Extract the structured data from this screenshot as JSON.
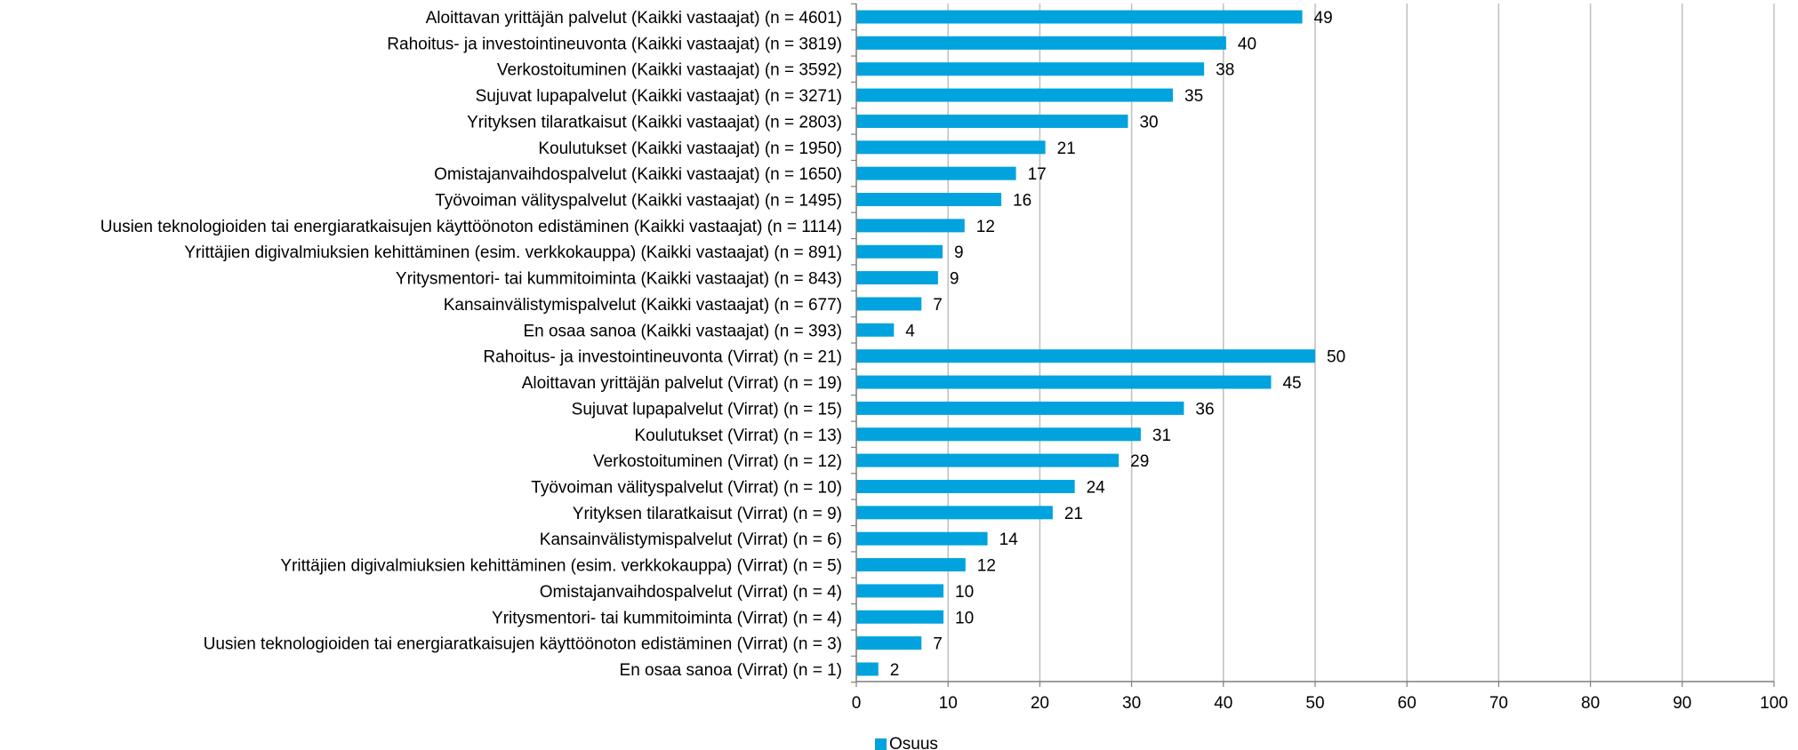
{
  "chart_data": {
    "type": "bar",
    "orientation": "horizontal",
    "categories": [
      "Aloittavan yrittäjän palvelut (Kaikki vastaajat) (n = 4601)",
      "Rahoitus- ja investointineuvonta (Kaikki vastaajat) (n = 3819)",
      "Verkostoituminen (Kaikki vastaajat) (n = 3592)",
      "Sujuvat lupapalvelut (Kaikki vastaajat) (n = 3271)",
      "Yrityksen tilaratkaisut (Kaikki vastaajat) (n = 2803)",
      "Koulutukset (Kaikki vastaajat) (n = 1950)",
      "Omistajanvaihdospalvelut (Kaikki vastaajat) (n = 1650)",
      "Työvoiman välityspalvelut (Kaikki vastaajat) (n = 1495)",
      "Uusien teknologioiden tai energiaratkaisujen käyttöönoton edistäminen (Kaikki vastaajat) (n = 1114)",
      "Yrittäjien digivalmiuksien kehittäminen (esim. verkkokauppa) (Kaikki vastaajat) (n = 891)",
      "Yritysmentori- tai kummitoiminta (Kaikki vastaajat) (n = 843)",
      "Kansainvälistymispalvelut (Kaikki vastaajat) (n = 677)",
      "En osaa sanoa (Kaikki vastaajat) (n = 393)",
      "Rahoitus- ja investointineuvonta (Virrat) (n = 21)",
      "Aloittavan yrittäjän palvelut (Virrat) (n = 19)",
      "Sujuvat lupapalvelut (Virrat) (n = 15)",
      "Koulutukset (Virrat) (n = 13)",
      "Verkostoituminen (Virrat) (n = 12)",
      "Työvoiman välityspalvelut (Virrat) (n = 10)",
      "Yrityksen tilaratkaisut (Virrat) (n = 9)",
      "Kansainvälistymispalvelut (Virrat) (n = 6)",
      "Yrittäjien digivalmiuksien kehittäminen (esim. verkkokauppa) (Virrat) (n = 5)",
      "Omistajanvaihdospalvelut (Virrat) (n = 4)",
      "Yritysmentori- tai kummitoiminta (Virrat) (n = 4)",
      "Uusien teknologioiden tai energiaratkaisujen käyttöönoton edistäminen (Virrat) (n = 3)",
      "En osaa sanoa (Virrat) (n = 1)"
    ],
    "series": [
      {
        "name": "Osuus",
        "color": "#00A3DD",
        "values": [
          48.6,
          40.3,
          37.9,
          34.5,
          29.6,
          20.6,
          17.4,
          15.8,
          11.8,
          9.4,
          8.9,
          7.1,
          4.1,
          50.0,
          45.2,
          35.7,
          31.0,
          28.6,
          23.8,
          21.4,
          14.3,
          11.9,
          9.5,
          9.5,
          7.1,
          2.4
        ],
        "labels": [
          "49",
          "40",
          "38",
          "35",
          "30",
          "21",
          "17",
          "16",
          "12",
          "9",
          "9",
          "7",
          "4",
          "50",
          "45",
          "36",
          "31",
          "29",
          "24",
          "21",
          "14",
          "12",
          "10",
          "10",
          "7",
          "2"
        ]
      }
    ],
    "xlim": [
      0,
      100
    ],
    "xticks": [
      "0",
      "10",
      "20",
      "30",
      "40",
      "50",
      "60",
      "70",
      "80",
      "90",
      "100"
    ],
    "grid": true,
    "legend_position": "bottom-left",
    "title": "",
    "xlabel": "",
    "ylabel": ""
  }
}
